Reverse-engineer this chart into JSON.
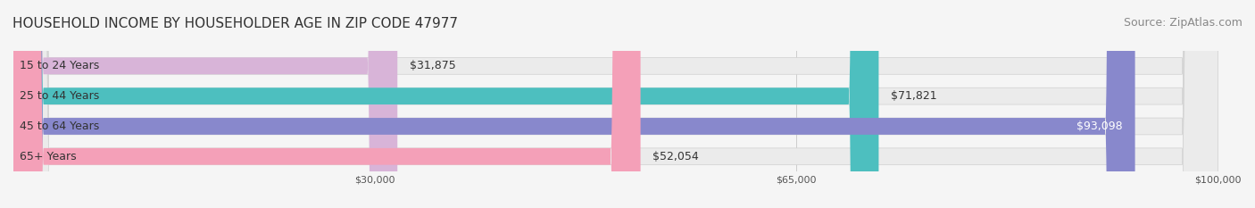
{
  "title": "HOUSEHOLD INCOME BY HOUSEHOLDER AGE IN ZIP CODE 47977",
  "source": "Source: ZipAtlas.com",
  "categories": [
    "15 to 24 Years",
    "25 to 44 Years",
    "45 to 64 Years",
    "65+ Years"
  ],
  "values": [
    31875,
    71821,
    93098,
    52054
  ],
  "bar_colors": [
    "#d8b4d8",
    "#4dbfbf",
    "#8888cc",
    "#f4a0b8"
  ],
  "bar_edge_colors": [
    "#c090c0",
    "#30a8a8",
    "#7070bb",
    "#e888a8"
  ],
  "label_colors": [
    "#555555",
    "#555555",
    "#ffffff",
    "#555555"
  ],
  "value_labels": [
    "$31,875",
    "$71,821",
    "$93,098",
    "$52,054"
  ],
  "x_ticks": [
    30000,
    65000,
    100000
  ],
  "x_tick_labels": [
    "$30,000",
    "$65,000",
    "$100,000"
  ],
  "xlim": [
    0,
    100000
  ],
  "bg_color": "#f5f5f5",
  "bar_bg_color": "#ebebeb",
  "title_fontsize": 11,
  "source_fontsize": 9,
  "label_fontsize": 9,
  "value_fontsize": 9
}
